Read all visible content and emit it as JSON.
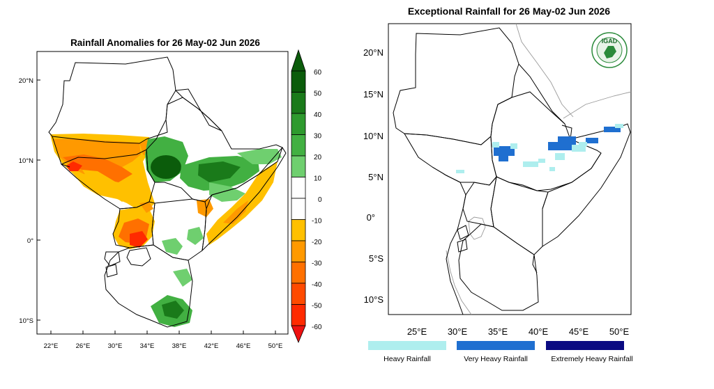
{
  "left_map": {
    "title": "Rainfall Anomalies for 26 May-02 Jun 2026",
    "lat_labels": [
      "20°N",
      "10°N",
      "0°",
      "10°S"
    ],
    "lon_labels": [
      "22°E",
      "26°E",
      "30°E",
      "34°E",
      "38°E",
      "42°E",
      "46°E",
      "50°E"
    ],
    "colorbar": {
      "labels": [
        "60",
        "50",
        "40",
        "30",
        "20",
        "10",
        "0",
        "-10",
        "-20",
        "-30",
        "-40",
        "-50",
        "-60"
      ],
      "colors": [
        "#0b5c0b",
        "#1a7a1a",
        "#2e9a2e",
        "#42b042",
        "#6fcf6f",
        "#ffffff",
        "#ffffff",
        "#ffc000",
        "#ff9900",
        "#ff7000",
        "#ff4a00",
        "#ff2a00",
        "#ee1111"
      ]
    }
  },
  "right_map": {
    "title": "Exceptional Rainfall for 26 May-02 Jun 2026",
    "lat_labels": [
      "20°N",
      "15°N",
      "10°N",
      "5°N",
      "0°",
      "5°S",
      "10°S"
    ],
    "lon_labels": [
      "25°E",
      "30°E",
      "35°E",
      "40°E",
      "45°E",
      "50°E"
    ],
    "logo_text": "IGAD",
    "legend": [
      {
        "label": "Heavy Rainfall",
        "color": "#aeeeee"
      },
      {
        "label": "Very Heavy Rainfall",
        "color": "#1f6fd0"
      },
      {
        "label": "Extremely Heavy Rainfall",
        "color": "#0a0a82"
      }
    ]
  }
}
